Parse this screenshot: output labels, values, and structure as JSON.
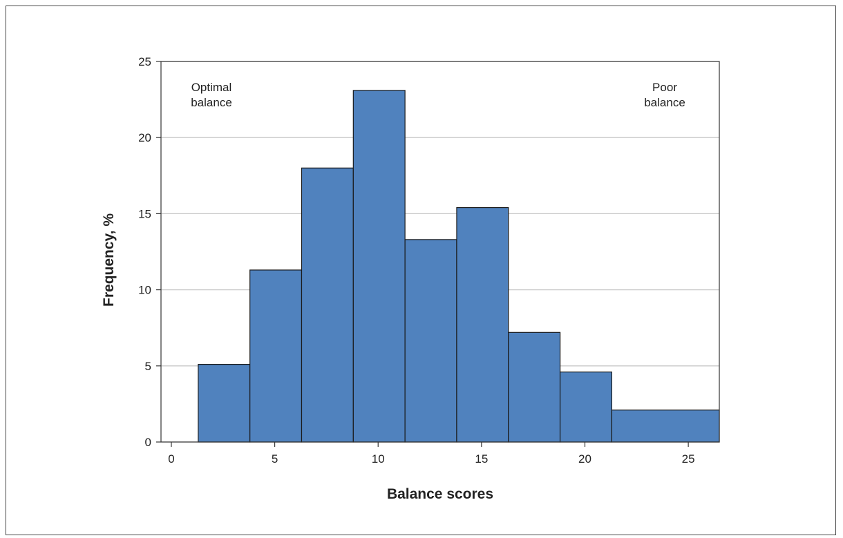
{
  "chart_data": {
    "type": "bar",
    "title": "",
    "xlabel": "Balance scores",
    "ylabel": "Frequency, %",
    "xlim": [
      -0.5,
      26.5
    ],
    "ylim": [
      0,
      25
    ],
    "xticks": [
      "0",
      "5",
      "10",
      "15",
      "20",
      "25"
    ],
    "yticks": [
      "0",
      "5",
      "10",
      "15",
      "20",
      "25"
    ],
    "grid": "horizontal",
    "bar_color": "#5082be",
    "bins": [
      {
        "start": 1.3,
        "end": 3.8,
        "value": 5.1
      },
      {
        "start": 3.8,
        "end": 6.3,
        "value": 11.3
      },
      {
        "start": 6.3,
        "end": 8.8,
        "value": 18.0
      },
      {
        "start": 8.8,
        "end": 11.3,
        "value": 23.1
      },
      {
        "start": 11.3,
        "end": 13.8,
        "value": 13.3
      },
      {
        "start": 13.8,
        "end": 16.3,
        "value": 15.4
      },
      {
        "start": 16.3,
        "end": 18.8,
        "value": 7.2
      },
      {
        "start": 18.8,
        "end": 21.3,
        "value": 4.6
      },
      {
        "start": 21.3,
        "end": 26.5,
        "value": 2.1
      }
    ],
    "annotations": {
      "left": [
        "Optimal",
        "balance"
      ],
      "right": [
        "Poor",
        "balance"
      ]
    }
  }
}
